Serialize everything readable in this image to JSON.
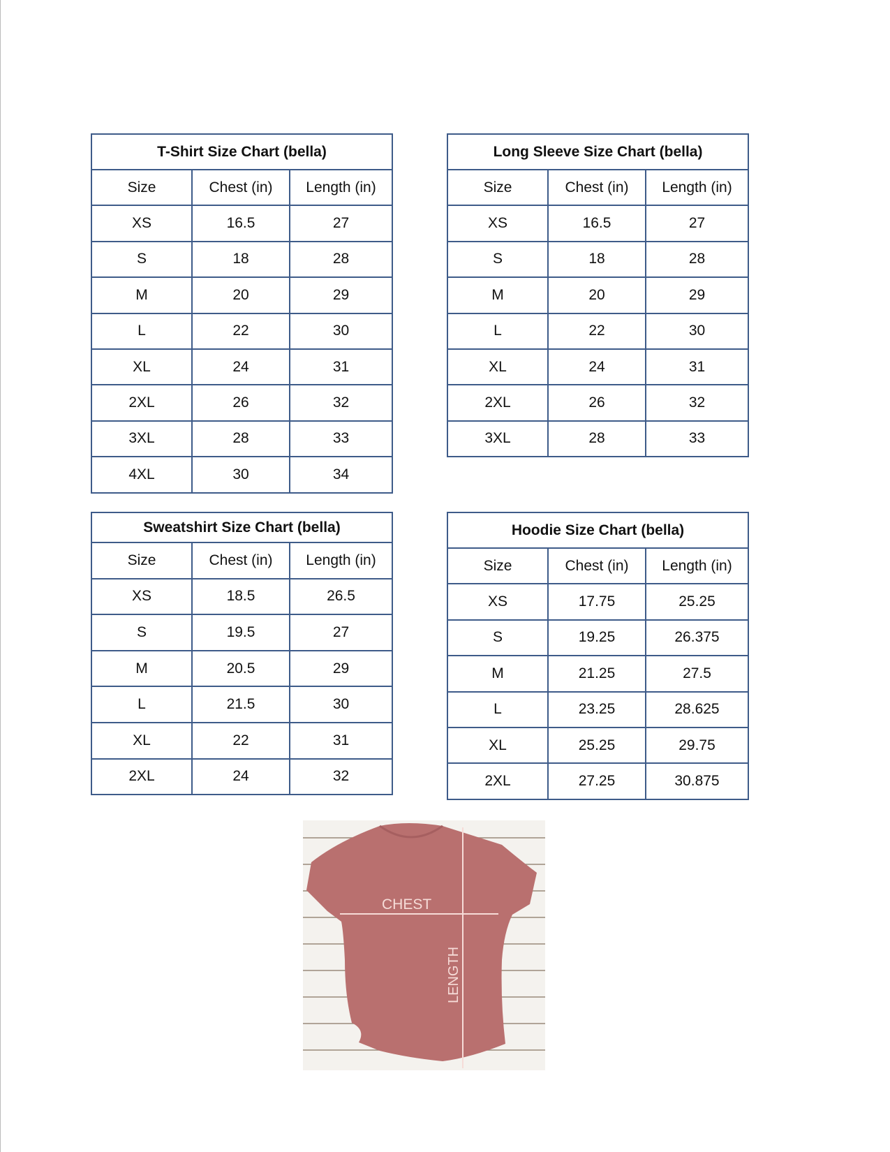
{
  "tables": [
    {
      "id": "tshirt",
      "title": "T-Shirt Size Chart  (bella)",
      "headers": [
        "Size",
        "Chest (in)",
        "Length (in)"
      ],
      "rows": [
        [
          "XS",
          "16.5",
          "27"
        ],
        [
          "S",
          "18",
          "28"
        ],
        [
          "M",
          "20",
          "29"
        ],
        [
          "L",
          "22",
          "30"
        ],
        [
          "XL",
          "24",
          "31"
        ],
        [
          "2XL",
          "26",
          "32"
        ],
        [
          "3XL",
          "28",
          "33"
        ],
        [
          "4XL",
          "30",
          "34"
        ]
      ]
    },
    {
      "id": "longsleeve",
      "title": "Long Sleeve Size Chart  (bella)",
      "headers": [
        "Size",
        "Chest (in)",
        "Length (in)"
      ],
      "rows": [
        [
          "XS",
          "16.5",
          "27"
        ],
        [
          "S",
          "18",
          "28"
        ],
        [
          "M",
          "20",
          "29"
        ],
        [
          "L",
          "22",
          "30"
        ],
        [
          "XL",
          "24",
          "31"
        ],
        [
          "2XL",
          "26",
          "32"
        ],
        [
          "3XL",
          "28",
          "33"
        ]
      ]
    },
    {
      "id": "sweatshirt",
      "title": "Sweatshirt Size Chart (bella)",
      "headers": [
        "Size",
        "Chest (in)",
        "Length (in)"
      ],
      "rows": [
        [
          "XS",
          "18.5",
          "26.5"
        ],
        [
          "S",
          "19.5",
          "27"
        ],
        [
          "M",
          "20.5",
          "29"
        ],
        [
          "L",
          "21.5",
          "30"
        ],
        [
          "XL",
          "22",
          "31"
        ],
        [
          "2XL",
          "24",
          "32"
        ]
      ]
    },
    {
      "id": "hoodie",
      "title": "Hoodie Size Chart (bella)",
      "headers": [
        "Size",
        "Chest (in)",
        "Length (in)"
      ],
      "rows": [
        [
          "XS",
          "17.75",
          "25.25"
        ],
        [
          "S",
          "19.25",
          "26.375"
        ],
        [
          "M",
          "21.25",
          "27.5"
        ],
        [
          "L",
          "23.25",
          "28.625"
        ],
        [
          "XL",
          "25.25",
          "29.75"
        ],
        [
          "2XL",
          "27.25",
          "30.875"
        ]
      ]
    }
  ],
  "photo": {
    "chest_label": "CHEST",
    "length_label": "LENGTH",
    "shirt_color": "#b9706f"
  },
  "colors": {
    "border": "#3e5b89"
  }
}
